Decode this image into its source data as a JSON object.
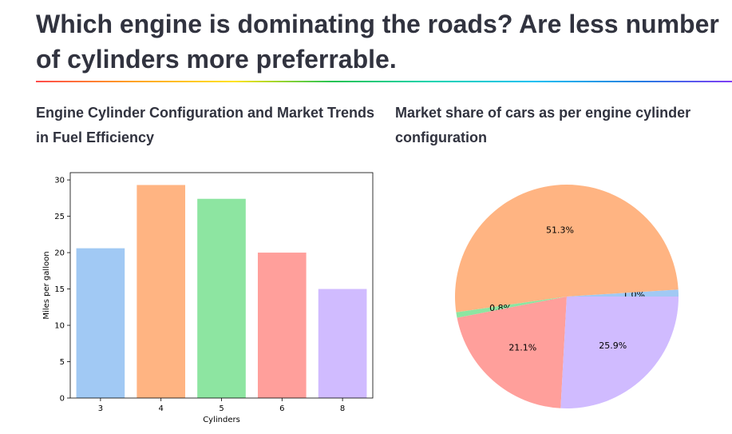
{
  "header": {
    "title": "Which engine is dominating the roads? Are less number of cylinders more preferrable."
  },
  "colors": {
    "divider_gradient": [
      "#ff4b4b",
      "#ffa421",
      "#ffe312",
      "#21c354",
      "#00d4b1",
      "#00c0f2",
      "#1c83e1",
      "#803df5"
    ],
    "cyl_3": "#a1c9f4",
    "cyl_4": "#ffb482",
    "cyl_5": "#8de5a1",
    "cyl_6": "#ff9f9b",
    "cyl_8": "#d0bbff"
  },
  "chart_data": [
    {
      "type": "bar",
      "title": "Engine Cylinder Configuration and Market Trends in Fuel Efficiency",
      "xlabel": "Cylinders",
      "ylabel": "Miles per galloon",
      "categories": [
        "3",
        "4",
        "5",
        "6",
        "8"
      ],
      "values": [
        20.6,
        29.3,
        27.4,
        20.0,
        15.0
      ],
      "ylim": [
        0,
        31
      ],
      "yticks": [
        0,
        5,
        10,
        15,
        20,
        25,
        30
      ],
      "colors": [
        "#a1c9f4",
        "#ffb482",
        "#8de5a1",
        "#ff9f9b",
        "#d0bbff"
      ],
      "grid": false
    },
    {
      "type": "pie",
      "title": "Market share of cars as per engine cylinder configuration",
      "slices": [
        {
          "category": "3",
          "value": 1.0,
          "label": "1.0%",
          "color": "#a1c9f4"
        },
        {
          "category": "4",
          "value": 51.3,
          "label": "51.3%",
          "color": "#ffb482"
        },
        {
          "category": "5",
          "value": 0.8,
          "label": "0.8%",
          "color": "#8de5a1"
        },
        {
          "category": "6",
          "value": 21.1,
          "label": "21.1%",
          "color": "#ff9f9b"
        },
        {
          "category": "8",
          "value": 25.9,
          "label": "25.9%",
          "color": "#d0bbff"
        }
      ]
    }
  ]
}
